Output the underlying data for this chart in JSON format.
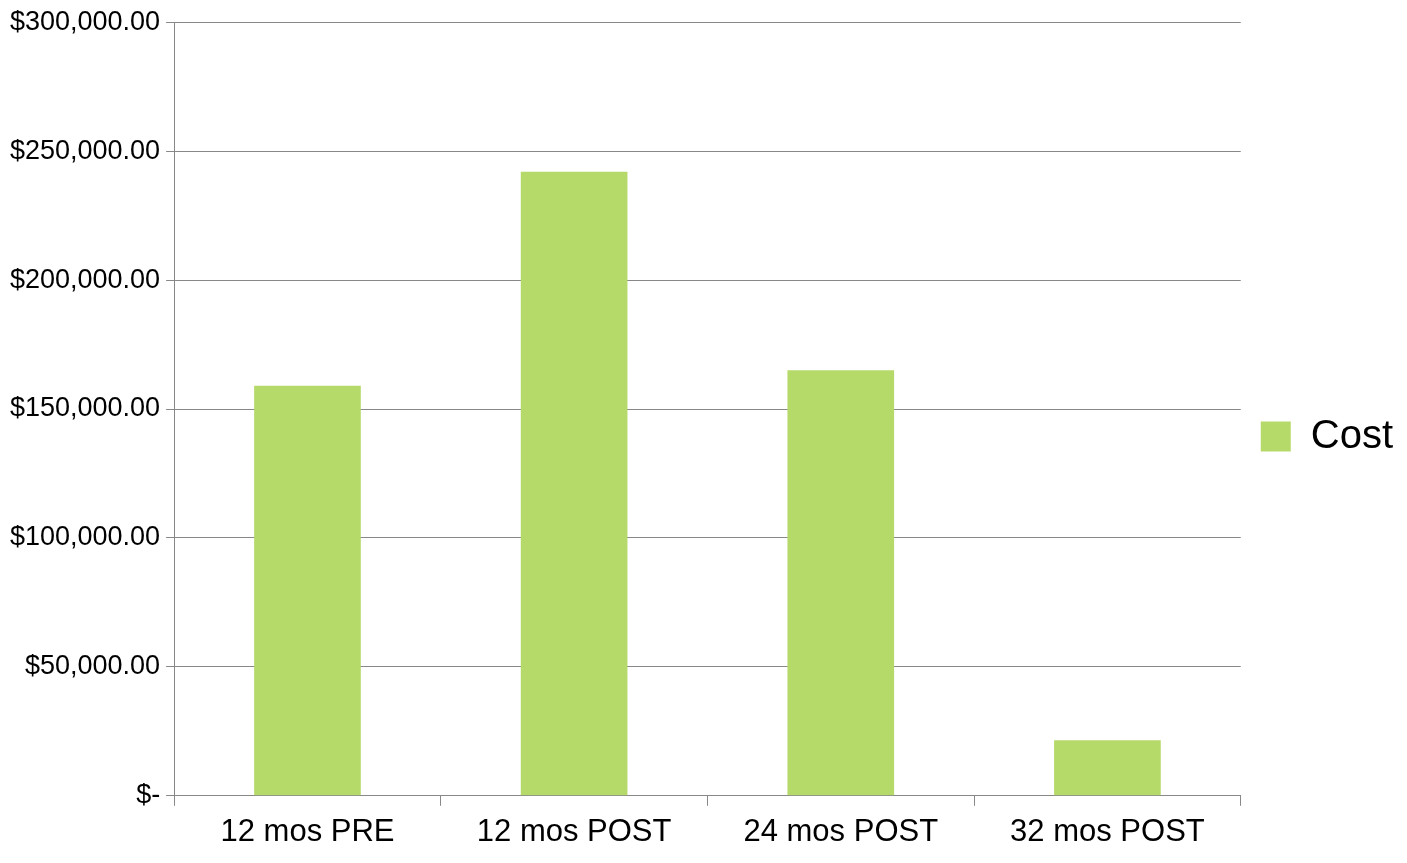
{
  "chart_data": {
    "type": "bar",
    "categories": [
      "12 mos PRE",
      "12 mos POST",
      "24 mos POST",
      "32 mos POST"
    ],
    "series": [
      {
        "name": "Cost",
        "color": "#b5da6a",
        "values": [
          159000,
          242000,
          165000,
          21500
        ]
      }
    ],
    "ylim": [
      0,
      300000
    ],
    "yticks": [
      {
        "value": 0,
        "label": "$-"
      },
      {
        "value": 50000,
        "label": "$50,000.00"
      },
      {
        "value": 100000,
        "label": "$100,000.00"
      },
      {
        "value": 150000,
        "label": "$150,000.00"
      },
      {
        "value": 200000,
        "label": "$200,000.00"
      },
      {
        "value": 250000,
        "label": "$250,000.00"
      },
      {
        "value": 300000,
        "label": "$300,000.00"
      }
    ],
    "grid": "y",
    "legend": "right"
  }
}
